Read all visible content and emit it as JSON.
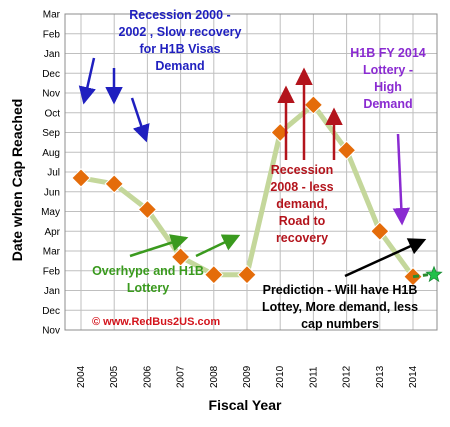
{
  "chart_data": {
    "type": "line",
    "xlabel": "Fiscal Year",
    "ylabel": "Date when Cap Reached",
    "categories": [
      "2004",
      "2005",
      "2006",
      "2007",
      "2008",
      "2009",
      "2010",
      "2011",
      "2012",
      "2013",
      "2014"
    ],
    "y_tick_labels": [
      "Mar",
      "Feb",
      "Jan",
      "Dec",
      "Nov",
      "Oct",
      "Sep",
      "Aug",
      "Jul",
      "Jun",
      "May",
      "Apr",
      "Mar",
      "Feb",
      "Jan",
      "Dec",
      "Nov"
    ],
    "series": [
      {
        "values": [
          7.7,
          7.4,
          6.1,
          3.7,
          2.8,
          2.8,
          10.0,
          11.4,
          9.1,
          5.0,
          2.7
        ]
      }
    ],
    "prediction": {
      "x_from": "2014",
      "value_from": 2.7,
      "value_to": 2.8
    },
    "grid": true,
    "colors": {
      "line": "#c4d79b",
      "marker_fill": "#e46c0a",
      "marker_stroke": "#ffffff",
      "prediction_line": "#2e8b2e",
      "prediction_star": "#22c04a",
      "grid": "#bfbfbf"
    },
    "annotations": [
      {
        "lines": [
          "Recession 2000 -",
          "2002 , Slow recovery",
          "for H1B Visas",
          "Demand"
        ],
        "color": "#1f1fbf"
      },
      {
        "lines": [
          "H1B FY 2014",
          "Lottery -",
          "High",
          "Demand"
        ],
        "color": "#8a2bd1"
      },
      {
        "lines": [
          "Recession",
          "2008 - less",
          "demand,",
          "Road to",
          "recovery"
        ],
        "color": "#b3141c"
      },
      {
        "lines": [
          "Overhype and H1B",
          "Lottery"
        ],
        "color": "#3a9a1e"
      },
      {
        "lines": [
          "Prediction - Will have H1B",
          "Lottey, More demand, less",
          "cap  numbers"
        ],
        "color": "#000000"
      }
    ],
    "copyright": {
      "text": "© www.RedBus2US.com",
      "color": "#d3141c"
    }
  }
}
